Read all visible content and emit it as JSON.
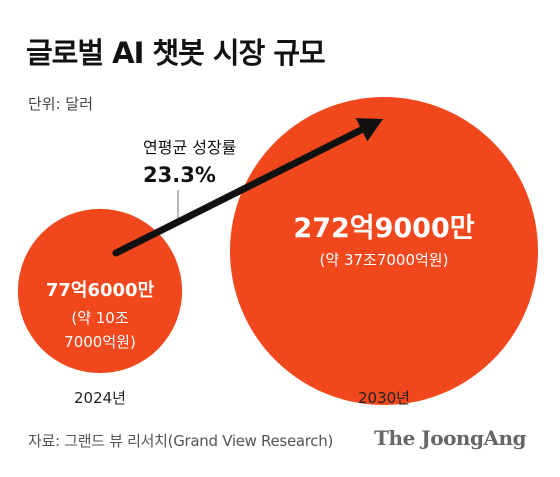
{
  "title": "글로벌 AI 챗봇 시장 규모",
  "unit": "단위: 달러",
  "source": "자료: 그랜드 뷰 리서치(Grand View Research)",
  "brand": "The JoongAng",
  "colors": {
    "bubble": "#f1471d",
    "text_on_bubble": "#ffffff",
    "arrow": "#111111"
  },
  "growth": {
    "label": "연평균 성장률",
    "value": "23.3%"
  },
  "chart_data": {
    "type": "bubble",
    "title": "글로벌 AI 챗봇 시장 규모",
    "unit": "달러",
    "categories": [
      "2024년",
      "2030년"
    ],
    "values_usd": [
      7760000000,
      27290000000
    ],
    "labels": [
      {
        "main": "77억6000만",
        "sub": [
          "(약 10조",
          "7000억원)"
        ]
      },
      {
        "main": "272억9000만",
        "sub": [
          "(약 37조7000억원)"
        ]
      }
    ],
    "annotation": {
      "label": "연평균 성장률",
      "value": "23.3%"
    }
  }
}
